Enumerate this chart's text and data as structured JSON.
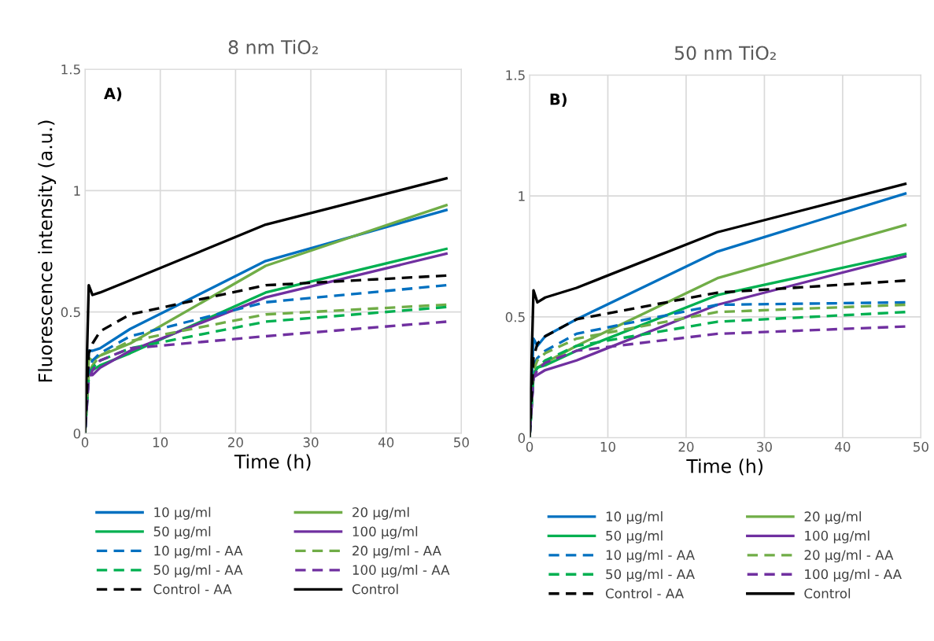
{
  "chart_data": [
    {
      "type": "line",
      "title": "8 nm TiO₂",
      "xlabel": "Time (h)",
      "ylabel": "Fluorescence intensity (a.u.)",
      "annotations": [
        "A)"
      ],
      "x": [
        0,
        0.5,
        1,
        2,
        6,
        24,
        48
      ],
      "xlim": [
        0,
        50
      ],
      "xticks": [
        0,
        10,
        20,
        30,
        40,
        50
      ],
      "ylim": [
        0,
        1.5
      ],
      "yticks": [
        0,
        0.5,
        1,
        1.5
      ],
      "grid": true,
      "legend": "bottom",
      "series": [
        {
          "name": "10 µg/ml",
          "color": "#0070c0",
          "line_style": "solid",
          "values": [
            0,
            0.34,
            0.34,
            0.35,
            0.43,
            0.71,
            0.92
          ]
        },
        {
          "name": "20 µg/ml",
          "color": "#70ad47",
          "line_style": "solid",
          "values": [
            0,
            0.31,
            0.3,
            0.32,
            0.37,
            0.69,
            0.94
          ]
        },
        {
          "name": "50 µg/ml",
          "color": "#00b050",
          "line_style": "solid",
          "values": [
            0,
            0.25,
            0.26,
            0.28,
            0.33,
            0.58,
            0.76
          ]
        },
        {
          "name": "100 µg/ml",
          "color": "#7030a0",
          "line_style": "solid",
          "values": [
            0,
            0.27,
            0.24,
            0.27,
            0.34,
            0.56,
            0.74
          ]
        },
        {
          "name": "10 µg/ml - AA",
          "color": "#0070c0",
          "line_style": "dashed",
          "values": [
            0,
            0.26,
            0.3,
            0.33,
            0.4,
            0.54,
            0.61
          ]
        },
        {
          "name": "20 µg/ml - AA",
          "color": "#70ad47",
          "line_style": "dashed",
          "values": [
            0,
            0.25,
            0.28,
            0.32,
            0.38,
            0.49,
            0.53
          ]
        },
        {
          "name": "50 µg/ml - AA",
          "color": "#00b050",
          "line_style": "dashed",
          "values": [
            0,
            0.23,
            0.27,
            0.3,
            0.35,
            0.46,
            0.52
          ]
        },
        {
          "name": "100 µg/ml - AA",
          "color": "#7030a0",
          "line_style": "dashed",
          "values": [
            0,
            0.22,
            0.26,
            0.3,
            0.35,
            0.4,
            0.46
          ]
        },
        {
          "name": "Control - AA",
          "color": "#000000",
          "line_style": "dashed",
          "values": [
            0,
            0.33,
            0.37,
            0.42,
            0.49,
            0.61,
            0.65
          ]
        },
        {
          "name": "Control",
          "color": "#000000",
          "line_style": "solid",
          "values": [
            0,
            0.61,
            0.57,
            0.58,
            0.63,
            0.86,
            1.05
          ]
        }
      ]
    },
    {
      "type": "line",
      "title": "50 nm TiO₂",
      "xlabel": "Time (h)",
      "annotations": [
        "B)"
      ],
      "x": [
        0,
        0.5,
        1,
        2,
        6,
        24,
        48
      ],
      "xlim": [
        0,
        50
      ],
      "xticks": [
        0,
        10,
        20,
        30,
        40,
        50
      ],
      "ylim": [
        0,
        1.5
      ],
      "yticks": [
        0,
        0.5,
        1,
        1.5
      ],
      "grid": true,
      "legend": "bottom",
      "series": [
        {
          "name": "10 µg/ml",
          "color": "#0070c0",
          "line_style": "solid",
          "values": [
            0,
            0.41,
            0.38,
            0.42,
            0.49,
            0.77,
            1.01
          ]
        },
        {
          "name": "20 µg/ml",
          "color": "#70ad47",
          "line_style": "solid",
          "values": [
            0,
            0.27,
            0.29,
            0.31,
            0.38,
            0.66,
            0.88
          ]
        },
        {
          "name": "50 µg/ml",
          "color": "#00b050",
          "line_style": "solid",
          "values": [
            0,
            0.26,
            0.29,
            0.3,
            0.36,
            0.59,
            0.76
          ]
        },
        {
          "name": "100 µg/ml",
          "color": "#7030a0",
          "line_style": "solid",
          "values": [
            0,
            0.25,
            0.26,
            0.28,
            0.32,
            0.55,
            0.75
          ]
        },
        {
          "name": "10 µg/ml - AA",
          "color": "#0070c0",
          "line_style": "dashed",
          "values": [
            0,
            0.3,
            0.33,
            0.36,
            0.43,
            0.55,
            0.56
          ]
        },
        {
          "name": "20 µg/ml - AA",
          "color": "#70ad47",
          "line_style": "dashed",
          "values": [
            0,
            0.28,
            0.32,
            0.35,
            0.41,
            0.52,
            0.55
          ]
        },
        {
          "name": "50 µg/ml - AA",
          "color": "#00b050",
          "line_style": "dashed",
          "values": [
            0,
            0.26,
            0.29,
            0.32,
            0.38,
            0.48,
            0.52
          ]
        },
        {
          "name": "100 µg/ml - AA",
          "color": "#7030a0",
          "line_style": "dashed",
          "values": [
            0,
            0.25,
            0.28,
            0.31,
            0.36,
            0.43,
            0.46
          ]
        },
        {
          "name": "Control - AA",
          "color": "#000000",
          "line_style": "dashed",
          "values": [
            0,
            0.33,
            0.39,
            0.42,
            0.49,
            0.6,
            0.65
          ]
        },
        {
          "name": "Control",
          "color": "#000000",
          "line_style": "solid",
          "values": [
            0,
            0.61,
            0.56,
            0.58,
            0.62,
            0.85,
            1.05
          ]
        }
      ]
    }
  ]
}
